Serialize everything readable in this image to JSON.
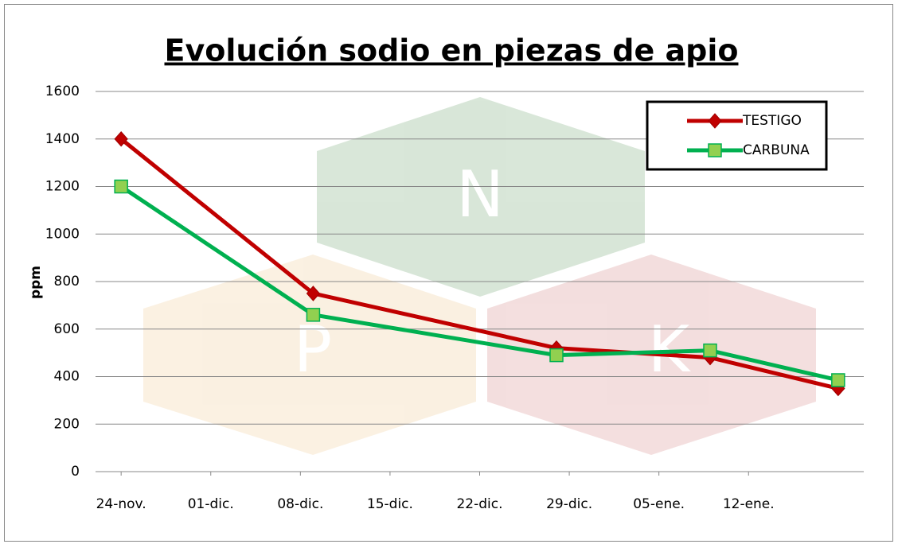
{
  "chart_data": {
    "type": "line",
    "title": "Evolución sodio en piezas de apio",
    "y_label": "ppm",
    "x": [
      0,
      15,
      34,
      46,
      56
    ],
    "xlim": [
      -2,
      58
    ],
    "xticks": [
      {
        "value": 0,
        "label": "24-nov."
      },
      {
        "value": 7,
        "label": "01-dic."
      },
      {
        "value": 14,
        "label": "08-dic."
      },
      {
        "value": 21,
        "label": "15-dic."
      },
      {
        "value": 28,
        "label": "22-dic."
      },
      {
        "value": 35,
        "label": "29-dic."
      },
      {
        "value": 42,
        "label": "05-ene."
      },
      {
        "value": 49,
        "label": "12-ene."
      }
    ],
    "ylim": [
      0,
      1600
    ],
    "yticks": [
      0,
      200,
      400,
      600,
      800,
      1000,
      1200,
      1400,
      1600
    ],
    "grid": true,
    "legend": "upper right",
    "series": [
      {
        "name": "TESTIGO",
        "color": "#c00000",
        "marker": "diamond",
        "values": [
          1400,
          750,
          520,
          480,
          350
        ]
      },
      {
        "name": "CARBUNA",
        "color": "#00b050",
        "marker": "square",
        "values": [
          1200,
          660,
          490,
          510,
          385
        ]
      }
    ]
  }
}
